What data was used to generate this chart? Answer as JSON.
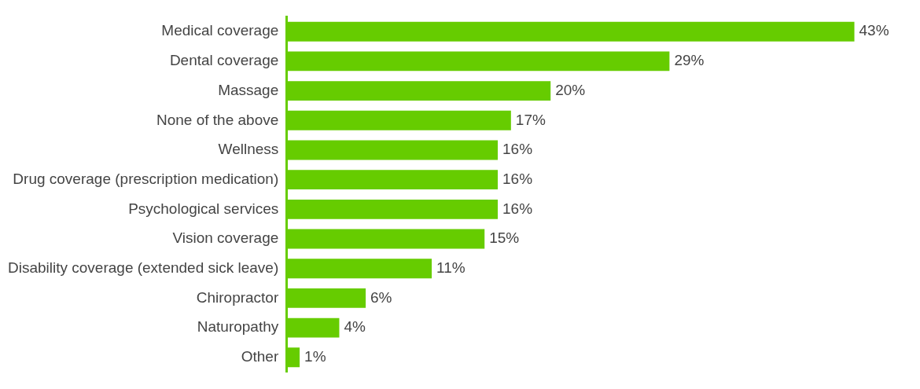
{
  "chart_data": {
    "type": "bar",
    "orientation": "horizontal",
    "categories": [
      "Medical coverage",
      "Dental coverage",
      "Massage",
      "None of the above",
      "Wellness",
      "Drug coverage (prescription medication)",
      "Psychological services",
      "Vision coverage",
      "Disability coverage (extended sick leave)",
      "Chiropractor",
      "Naturopathy",
      "Other"
    ],
    "values": [
      43,
      29,
      20,
      17,
      16,
      16,
      16,
      15,
      11,
      6,
      4,
      1
    ],
    "value_labels": [
      "43%",
      "29%",
      "20%",
      "17%",
      "16%",
      "16%",
      "16%",
      "15%",
      "11%",
      "6%",
      "4%",
      "1%"
    ],
    "color": "#66cc00",
    "grid": false,
    "legend": false,
    "tick_labels": "y"
  }
}
